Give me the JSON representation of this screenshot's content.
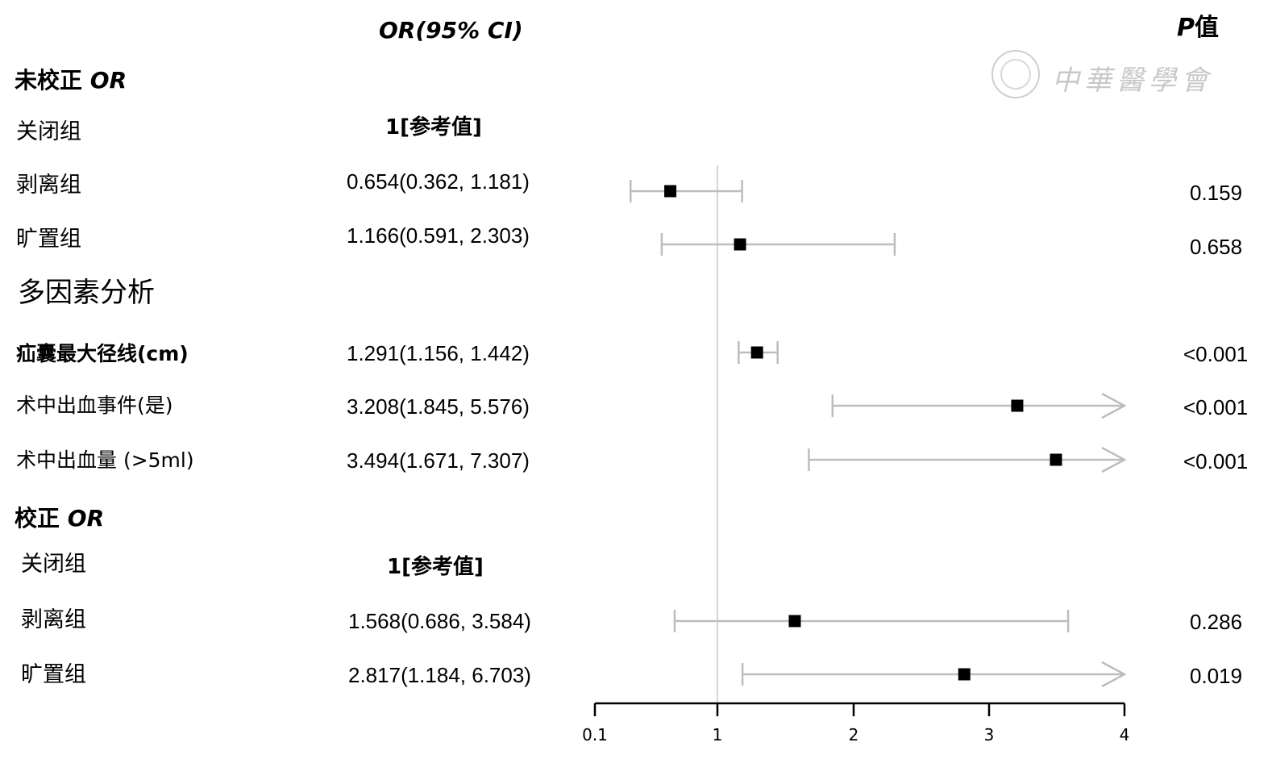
{
  "headers": {
    "ci": "OR(95% CI)",
    "p_prefix": "P",
    "p_suffix": "值"
  },
  "watermark": {
    "text": "中華醫學會"
  },
  "sections": [
    {
      "pre": "未校正",
      "post": "OR"
    },
    {
      "text": "多因素分析"
    },
    {
      "pre": "校正",
      "post": "OR"
    }
  ],
  "rows": [
    {
      "label": "关闭组",
      "ci_text": "1[参考值]",
      "p": ""
    },
    {
      "label": "剥离组",
      "ci_text": "0.654(0.362, 1.181)",
      "p": "0.159"
    },
    {
      "label": "旷置组",
      "ci_text": "1.166(0.591, 2.303)",
      "p": "0.658"
    },
    {
      "label": "疝囊最大径线(cm)",
      "ci_text": "1.291(1.156, 1.442)",
      "p": "<0.001"
    },
    {
      "label": "术中出血事件(是)",
      "ci_text": "3.208(1.845, 5.576)",
      "p": "<0.001"
    },
    {
      "label": "术中出血量 (>5ml)",
      "ci_text": "3.494(1.671, 7.307)",
      "p": "<0.001"
    },
    {
      "label": "关闭组",
      "ci_text": "1[参考值]",
      "p": ""
    },
    {
      "label": "剥离组",
      "ci_text": "1.568(0.686, 3.584)",
      "p": "0.286"
    },
    {
      "label": "旷置组",
      "ci_text": "2.817(1.184, 6.703)",
      "p": "0.019"
    }
  ],
  "chart_data": {
    "type": "forest",
    "x_ticks": [
      "0.1",
      "1",
      "2",
      "3",
      "4"
    ],
    "xlim": [
      0.1,
      4
    ],
    "reference_line": 1,
    "points": [
      {
        "or": 0.654,
        "lower": 0.362,
        "upper": 1.181
      },
      {
        "or": 1.166,
        "lower": 0.591,
        "upper": 2.303
      },
      {
        "or": 1.291,
        "lower": 1.156,
        "upper": 1.442
      },
      {
        "or": 3.208,
        "lower": 1.845,
        "upper": 5.576,
        "truncated": true
      },
      {
        "or": 3.494,
        "lower": 1.671,
        "upper": 7.307,
        "truncated": true
      },
      {
        "or": 1.568,
        "lower": 0.686,
        "upper": 3.584
      },
      {
        "or": 2.817,
        "lower": 1.184,
        "upper": 6.703,
        "truncated": true
      }
    ],
    "colors": {
      "point": "#000000",
      "whisker": "#bdbdbd",
      "axis": "#000000",
      "refline": "#d6d6d6"
    }
  }
}
